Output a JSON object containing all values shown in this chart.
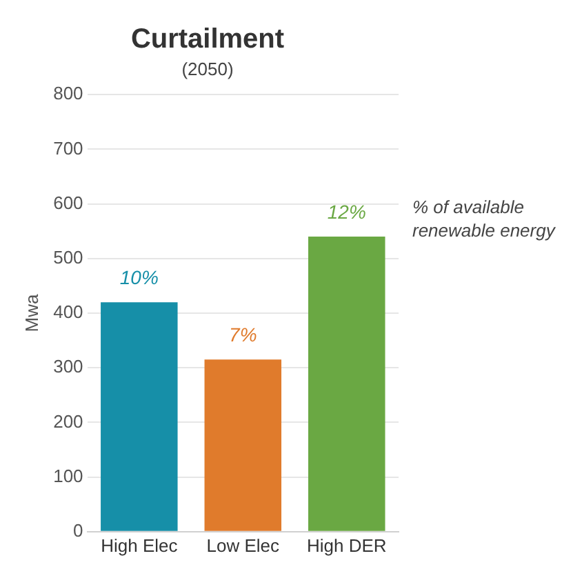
{
  "chart_data": {
    "type": "bar",
    "title": "Curtailment",
    "subtitle": "(2050)",
    "ylabel": "Mwa",
    "categories": [
      "High Elec",
      "Low Elec",
      "High DER"
    ],
    "values": [
      420,
      315,
      540
    ],
    "colors": [
      "#168fa8",
      "#e07b2c",
      "#6aa843"
    ],
    "annotations": [
      {
        "text": "10%",
        "x": "High Elec",
        "y": 420
      },
      {
        "text": "7%",
        "x": "Low Elec",
        "y": 315
      },
      {
        "text": "12%",
        "x": "High DER",
        "y": 540
      },
      "% of available renewable energy"
    ],
    "ylim": [
      0,
      800
    ],
    "yticks": [
      0,
      100,
      200,
      300,
      400,
      500,
      600,
      700,
      800
    ],
    "grid": "y",
    "legend": false
  }
}
